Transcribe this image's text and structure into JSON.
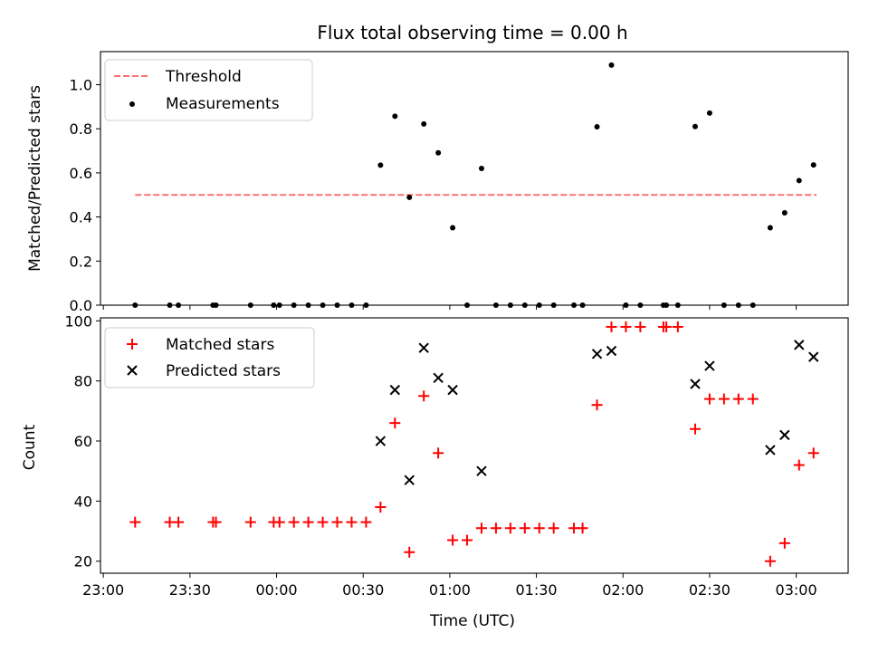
{
  "chart_data": [
    {
      "type": "scatter",
      "title": "Flux total observing time = 0.00 h",
      "xlabel": "",
      "ylabel": "Matched/Predicted stars",
      "xlim": [
        "22:59",
        "03:18"
      ],
      "ylim": [
        0,
        1.15
      ],
      "yticks": [
        0.0,
        0.2,
        0.4,
        0.6,
        0.8,
        1.0
      ],
      "yticklabels": [
        "0.0",
        "0.2",
        "0.4",
        "0.6",
        "0.8",
        "1.0"
      ],
      "legend_position": "upper-left",
      "series": [
        {
          "name": "Threshold",
          "style": "dashed-line",
          "color": "#ff7070",
          "x": [
            "23:11",
            "03:07"
          ],
          "y": [
            0.5,
            0.5
          ]
        },
        {
          "name": "Measurements",
          "style": "dot",
          "color": "#000000",
          "x": [
            "23:11",
            "23:23",
            "23:26",
            "23:38",
            "23:39",
            "23:51",
            "23:59",
            "00:01",
            "00:06",
            "00:11",
            "00:16",
            "00:21",
            "00:26",
            "00:31",
            "00:36",
            "00:41",
            "00:46",
            "00:51",
            "00:56",
            "01:01",
            "01:06",
            "01:11",
            "01:16",
            "01:21",
            "01:26",
            "01:31",
            "01:36",
            "01:43",
            "01:46",
            "01:51",
            "01:56",
            "02:01",
            "02:06",
            "02:14",
            "02:15",
            "02:19",
            "02:25",
            "02:30",
            "02:35",
            "02:40",
            "02:45",
            "02:51",
            "02:56",
            "03:01",
            "03:06"
          ],
          "y": [
            0,
            0,
            0,
            0,
            0,
            0,
            0,
            0,
            0,
            0,
            0,
            0,
            0,
            0,
            0.635,
            0.857,
            0.489,
            0.822,
            0.691,
            0.351,
            0,
            0.62,
            0,
            0,
            0,
            0,
            0,
            0,
            0,
            0.809,
            1.089,
            0,
            0,
            0,
            0,
            0,
            0.81,
            0.871,
            0,
            0,
            0,
            0.351,
            0.419,
            0.565,
            0.636
          ]
        }
      ]
    },
    {
      "type": "scatter",
      "title": "",
      "xlabel": "Time (UTC)",
      "ylabel": "Count",
      "xlim": [
        "22:59",
        "03:18"
      ],
      "ylim": [
        16,
        101
      ],
      "yticks": [
        20,
        40,
        60,
        80,
        100
      ],
      "yticklabels": [
        "20",
        "40",
        "60",
        "80",
        "100"
      ],
      "xticks": [
        "23:00",
        "23:30",
        "00:00",
        "00:30",
        "01:00",
        "01:30",
        "02:00",
        "02:30",
        "03:00"
      ],
      "legend_position": "upper-left",
      "series": [
        {
          "name": "Matched stars",
          "style": "plus",
          "color": "#ff0000",
          "x": [
            "23:11",
            "23:23",
            "23:26",
            "23:38",
            "23:39",
            "23:51",
            "23:59",
            "00:01",
            "00:06",
            "00:11",
            "00:16",
            "00:21",
            "00:26",
            "00:31",
            "00:36",
            "00:41",
            "00:46",
            "00:51",
            "00:56",
            "01:01",
            "01:06",
            "01:11",
            "01:16",
            "01:21",
            "01:26",
            "01:31",
            "01:36",
            "01:43",
            "01:46",
            "01:51",
            "01:56",
            "02:01",
            "02:06",
            "02:14",
            "02:15",
            "02:19",
            "02:25",
            "02:30",
            "02:35",
            "02:40",
            "02:45",
            "02:51",
            "02:56",
            "03:01",
            "03:06"
          ],
          "y": [
            33,
            33,
            33,
            33,
            33,
            33,
            33,
            33,
            33,
            33,
            33,
            33,
            33,
            33,
            38,
            66,
            23,
            75,
            56,
            27,
            27,
            31,
            31,
            31,
            31,
            31,
            31,
            31,
            31,
            72,
            98,
            98,
            98,
            98,
            98,
            98,
            64,
            74,
            74,
            74,
            74,
            20,
            26,
            52,
            56
          ]
        },
        {
          "name": "Predicted stars",
          "style": "x",
          "color": "#000000",
          "x": [
            "00:36",
            "00:41",
            "00:46",
            "00:51",
            "00:56",
            "01:01",
            "01:11",
            "01:51",
            "01:56",
            "02:25",
            "02:30",
            "02:51",
            "02:56",
            "03:01",
            "03:06"
          ],
          "y": [
            60,
            77,
            47,
            91,
            81,
            77,
            50,
            89,
            90,
            79,
            85,
            57,
            62,
            92,
            88
          ]
        }
      ]
    }
  ]
}
